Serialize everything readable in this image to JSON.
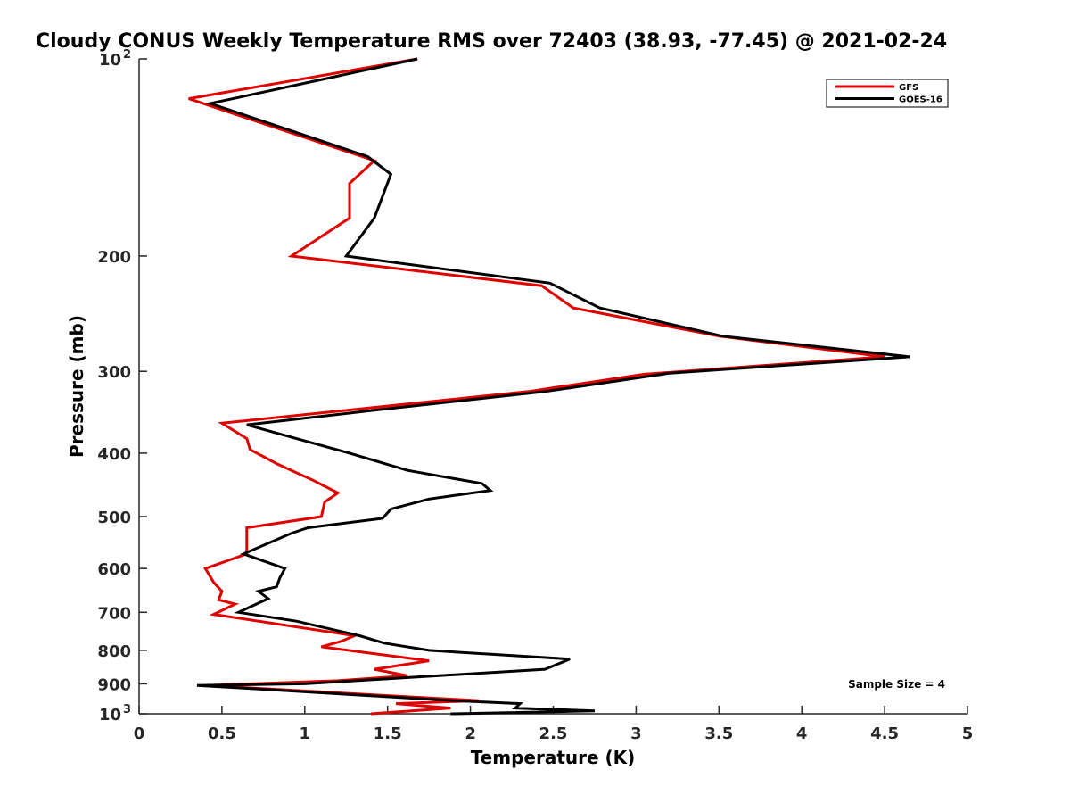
{
  "chart_data": {
    "type": "line",
    "title": "Cloudy CONUS Weekly Temperature RMS over 72403 (38.93, -77.45) @ 2021-02-24",
    "xlabel": "Temperature (K)",
    "ylabel": "Pressure (mb)",
    "xlim": [
      0,
      5
    ],
    "ylim": [
      100,
      1000
    ],
    "y_scale": "log",
    "y_reversed": true,
    "grid": false,
    "legend_position": "top-right",
    "x_ticks": [
      {
        "value": 0,
        "label": "0"
      },
      {
        "value": 0.5,
        "label": "0.5"
      },
      {
        "value": 1,
        "label": "1"
      },
      {
        "value": 1.5,
        "label": "1.5"
      },
      {
        "value": 2,
        "label": "2"
      },
      {
        "value": 2.5,
        "label": "2.5"
      },
      {
        "value": 3,
        "label": "3"
      },
      {
        "value": 3.5,
        "label": "3.5"
      },
      {
        "value": 4,
        "label": "4"
      },
      {
        "value": 4.5,
        "label": "4.5"
      },
      {
        "value": 5,
        "label": "5"
      }
    ],
    "y_ticks": [
      {
        "value": 100,
        "label": "10",
        "sup": "2"
      },
      {
        "value": 200,
        "label": "200",
        "sup": ""
      },
      {
        "value": 300,
        "label": "300",
        "sup": ""
      },
      {
        "value": 400,
        "label": "400",
        "sup": ""
      },
      {
        "value": 500,
        "label": "500",
        "sup": ""
      },
      {
        "value": 600,
        "label": "600",
        "sup": ""
      },
      {
        "value": 700,
        "label": "700",
        "sup": ""
      },
      {
        "value": 800,
        "label": "800",
        "sup": ""
      },
      {
        "value": 900,
        "label": "900",
        "sup": ""
      },
      {
        "value": 1000,
        "label": "10",
        "sup": "3"
      }
    ],
    "annotation": "Sample Size = 4",
    "series": [
      {
        "name": "GFS",
        "color": "#e00000",
        "points": [
          [
            1.68,
            100
          ],
          [
            0.3,
            115
          ],
          [
            1.42,
            143
          ],
          [
            1.27,
            155
          ],
          [
            1.27,
            175
          ],
          [
            0.92,
            200
          ],
          [
            2.43,
            222
          ],
          [
            2.62,
            240
          ],
          [
            3.5,
            265
          ],
          [
            4.5,
            285
          ],
          [
            3.05,
            303
          ],
          [
            2.35,
            322
          ],
          [
            1.4,
            341
          ],
          [
            0.5,
            360
          ],
          [
            0.65,
            380
          ],
          [
            0.67,
            395
          ],
          [
            0.83,
            415
          ],
          [
            1.05,
            440
          ],
          [
            1.2,
            460
          ],
          [
            1.12,
            475
          ],
          [
            1.1,
            500
          ],
          [
            0.65,
            520
          ],
          [
            0.65,
            570
          ],
          [
            0.4,
            600
          ],
          [
            0.45,
            630
          ],
          [
            0.5,
            650
          ],
          [
            0.48,
            670
          ],
          [
            0.58,
            680
          ],
          [
            0.45,
            705
          ],
          [
            1.3,
            760
          ],
          [
            1.22,
            775
          ],
          [
            1.1,
            790
          ],
          [
            1.75,
            830
          ],
          [
            1.42,
            855
          ],
          [
            1.62,
            875
          ],
          [
            1.2,
            890
          ],
          [
            0.4,
            905
          ],
          [
            2.05,
            955
          ],
          [
            1.55,
            965
          ],
          [
            1.88,
            980
          ],
          [
            1.4,
            1000
          ]
        ]
      },
      {
        "name": "GOES-16",
        "color": "#000000",
        "points": [
          [
            1.68,
            100
          ],
          [
            0.43,
            117
          ],
          [
            1.38,
            141
          ],
          [
            1.52,
            150
          ],
          [
            1.42,
            175
          ],
          [
            1.25,
            200
          ],
          [
            2.48,
            220
          ],
          [
            2.78,
            240
          ],
          [
            3.52,
            265
          ],
          [
            4.65,
            285
          ],
          [
            3.2,
            302
          ],
          [
            2.45,
            322
          ],
          [
            1.42,
            344
          ],
          [
            0.65,
            362
          ],
          [
            0.95,
            380
          ],
          [
            1.27,
            400
          ],
          [
            1.62,
            425
          ],
          [
            2.07,
            445
          ],
          [
            2.12,
            456
          ],
          [
            1.75,
            470
          ],
          [
            1.52,
            487
          ],
          [
            1.47,
            503
          ],
          [
            1.02,
            520
          ],
          [
            0.92,
            530
          ],
          [
            0.63,
            570
          ],
          [
            0.88,
            600
          ],
          [
            0.85,
            620
          ],
          [
            0.83,
            640
          ],
          [
            0.72,
            650
          ],
          [
            0.78,
            667
          ],
          [
            0.6,
            700
          ],
          [
            0.95,
            722
          ],
          [
            1.33,
            760
          ],
          [
            1.48,
            780
          ],
          [
            1.75,
            800
          ],
          [
            2.6,
            825
          ],
          [
            2.45,
            855
          ],
          [
            1.0,
            900
          ],
          [
            0.35,
            905
          ],
          [
            1.9,
            955
          ],
          [
            2.3,
            965
          ],
          [
            2.27,
            980
          ],
          [
            2.75,
            990
          ],
          [
            1.88,
            1000
          ]
        ]
      }
    ]
  }
}
